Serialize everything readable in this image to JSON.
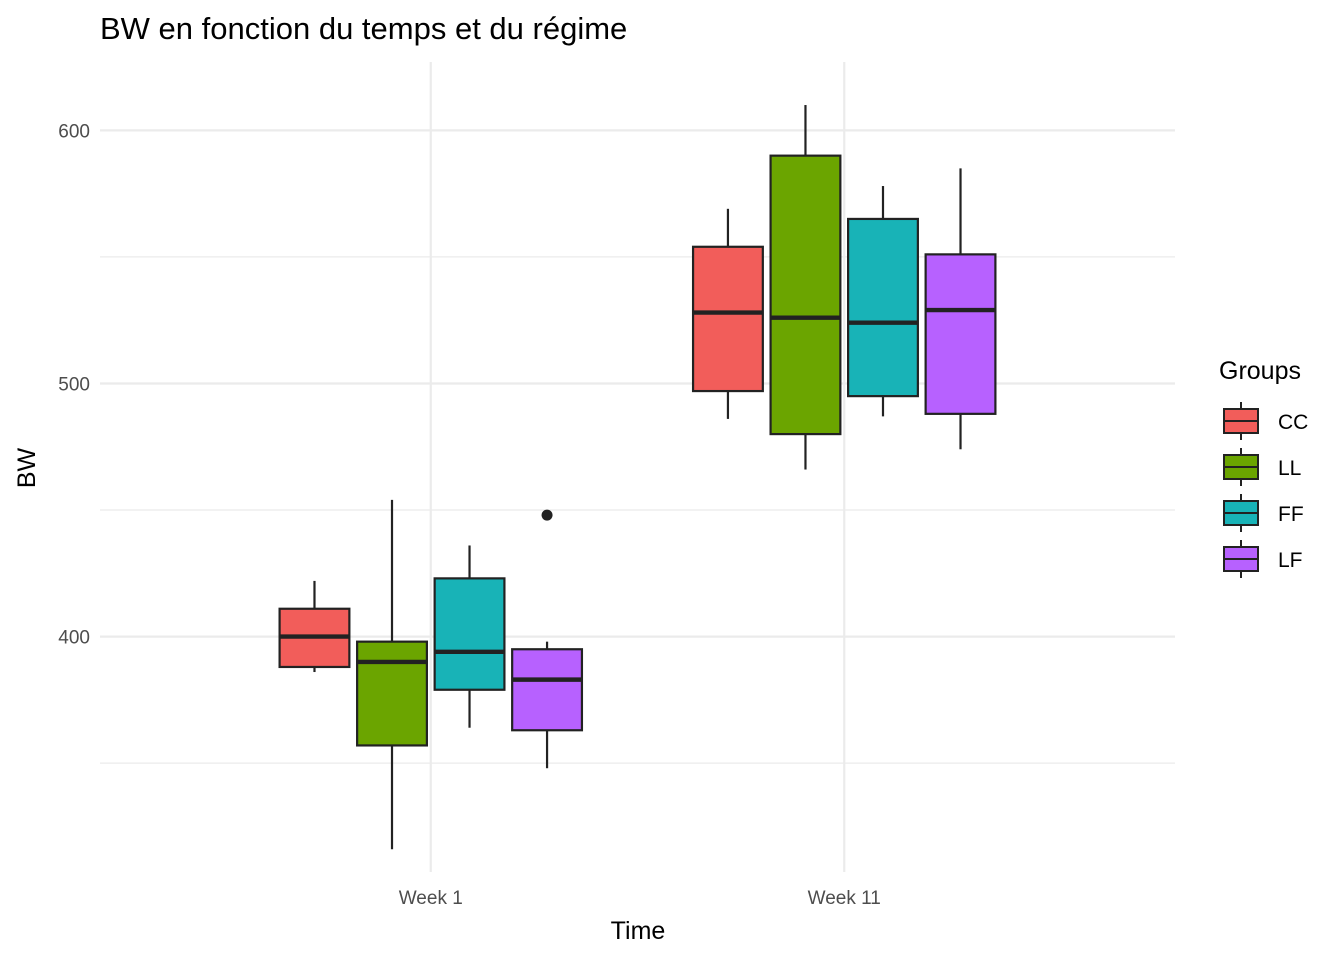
{
  "chart_data": {
    "type": "boxplot",
    "title": "BW en fonction du temps et du régime",
    "xlabel": "Time",
    "ylabel": "BW",
    "categories": [
      "Week 1",
      "Week 11"
    ],
    "ylim": [
      307,
      627
    ],
    "yticks": [
      400,
      500,
      600
    ],
    "grid": true,
    "legend": {
      "title": "Groups",
      "position": "right",
      "items": [
        "CC",
        "LL",
        "FF",
        "LF"
      ]
    },
    "series": [
      {
        "name": "CC",
        "color": "#F25D5A",
        "boxes": [
          {
            "category": "Week 1",
            "min": 386,
            "q1": 388,
            "median": 400,
            "q3": 411,
            "max": 422,
            "outliers": []
          },
          {
            "category": "Week 11",
            "min": 486,
            "q1": 497,
            "median": 528,
            "q3": 554,
            "max": 569,
            "outliers": []
          }
        ]
      },
      {
        "name": "LL",
        "color": "#6BA500",
        "boxes": [
          {
            "category": "Week 1",
            "min": 316,
            "q1": 357,
            "median": 390,
            "q3": 398,
            "max": 454,
            "outliers": []
          },
          {
            "category": "Week 11",
            "min": 466,
            "q1": 480,
            "median": 526,
            "q3": 590,
            "max": 610,
            "outliers": []
          }
        ]
      },
      {
        "name": "FF",
        "color": "#18B3B7",
        "boxes": [
          {
            "category": "Week 1",
            "min": 364,
            "q1": 379,
            "median": 394,
            "q3": 423,
            "max": 436,
            "outliers": []
          },
          {
            "category": "Week 11",
            "min": 487,
            "q1": 495,
            "median": 524,
            "q3": 565,
            "max": 578,
            "outliers": []
          }
        ]
      },
      {
        "name": "LF",
        "color": "#B761FF",
        "boxes": [
          {
            "category": "Week 1",
            "min": 348,
            "q1": 363,
            "median": 383,
            "q3": 395,
            "max": 398,
            "outliers": [
              448
            ]
          },
          {
            "category": "Week 11",
            "min": 474,
            "q1": 488,
            "median": 529,
            "q3": 551,
            "max": 585,
            "outliers": []
          }
        ]
      }
    ]
  }
}
